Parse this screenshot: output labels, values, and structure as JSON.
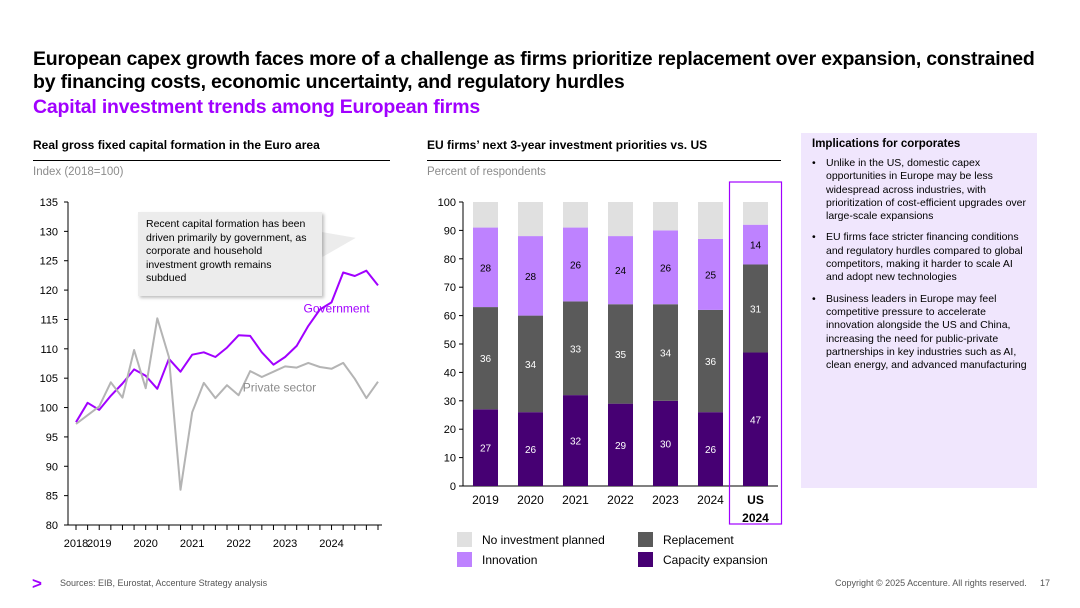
{
  "header": {
    "title": "European capex growth faces more of a challenge as firms prioritize replacement over expansion, constrained by financing costs, economic uncertainty, and regulatory hurdles",
    "subtitle": "Capital investment trends among European firms"
  },
  "left_panel": {
    "title": "Real gross fixed capital formation in the Euro area",
    "subtitle": "Index (2018=100)",
    "callout": "Recent capital formation has been driven primarily by government, as corporate and household investment growth remains subdued"
  },
  "mid_panel": {
    "title": "EU firms’ next 3-year investment priorities vs. US",
    "subtitle": "Percent of respondents"
  },
  "implications": {
    "title": "Implications for corporates",
    "bullets": [
      "Unlike in the US, domestic capex opportunities in Europe may be less widespread across industries, with prioritization of cost-efficient upgrades over large-scale expansions",
      "EU firms face stricter financing conditions and regulatory hurdles compared to global competitors, making it harder to scale AI and adopt new technologies",
      "Business leaders in Europe may feel competitive pressure to accelerate innovation alongside the US and China, increasing the need for public-private partnerships in key industries such as AI, clean energy, and advanced manufacturing"
    ]
  },
  "legend": {
    "no_investment": "No investment planned",
    "replacement": "Replacement",
    "innovation": "Innovation",
    "capacity": "Capacity expansion"
  },
  "colors": {
    "accent": "#a100ff",
    "government": "#a100ff",
    "private": "#b4b4b4",
    "no_investment": "#e0e0e0",
    "innovation": "#be82ff",
    "replacement": "#5a5a5a",
    "capacity": "#460073",
    "impl_bg": "#f0e6fd"
  },
  "footer": {
    "logo": ">",
    "sources": "Sources: EIB, Eurostat, Accenture Strategy analysis",
    "copyright": "Copyright © 2025 Accenture. All rights reserved.",
    "page": "17"
  },
  "chart_data": [
    {
      "type": "line",
      "title": "Real gross fixed capital formation in the Euro area",
      "ylabel": "Index (2018=100)",
      "ylim": [
        80,
        135
      ],
      "yticks": [
        80,
        85,
        90,
        95,
        100,
        105,
        110,
        115,
        120,
        125,
        130,
        135
      ],
      "xtick_labels": [
        "2018",
        "2019",
        "2020",
        "2021",
        "2022",
        "2023",
        "2024"
      ],
      "xtick_positions": [
        0,
        2,
        6,
        10,
        14,
        18,
        22
      ],
      "n_points": 27,
      "series": [
        {
          "name": "Government",
          "values": [
            97.5,
            100.8,
            99.6,
            102.0,
            104.1,
            106.5,
            105.4,
            103.2,
            108.3,
            106.1,
            109.0,
            109.4,
            108.6,
            110.2,
            112.3,
            112.2,
            109.4,
            107.3,
            108.6,
            110.5,
            113.9,
            116.7,
            117.9,
            123.0,
            122.4,
            123.3,
            120.8
          ]
        },
        {
          "name": "Private sector",
          "values": [
            97.2,
            98.7,
            100.2,
            104.3,
            101.7,
            109.8,
            103.3,
            115.2,
            108.6,
            86.0,
            99.2,
            104.2,
            101.6,
            103.8,
            102.1,
            106.2,
            105.2,
            106.1,
            107.0,
            106.8,
            107.6,
            106.9,
            106.6,
            107.6,
            104.9,
            101.6,
            104.4
          ]
        }
      ]
    },
    {
      "type": "bar",
      "stacked": true,
      "title": "EU firms’ next 3-year investment priorities vs. US",
      "ylabel": "Percent of respondents",
      "ylim": [
        0,
        100
      ],
      "yticks": [
        0,
        10,
        20,
        30,
        40,
        50,
        60,
        70,
        80,
        90,
        100
      ],
      "categories": [
        "2019",
        "2020",
        "2021",
        "2022",
        "2023",
        "2024",
        "US 2024"
      ],
      "highlight": "US 2024",
      "series": [
        {
          "name": "Capacity expansion",
          "values": [
            27,
            26,
            32,
            29,
            30,
            26,
            47
          ]
        },
        {
          "name": "Replacement",
          "values": [
            36,
            34,
            33,
            35,
            34,
            36,
            31
          ]
        },
        {
          "name": "Innovation",
          "values": [
            28,
            28,
            26,
            24,
            26,
            25,
            14
          ]
        },
        {
          "name": "No investment planned",
          "values": [
            9,
            12,
            9,
            12,
            10,
            13,
            8
          ]
        }
      ]
    }
  ]
}
